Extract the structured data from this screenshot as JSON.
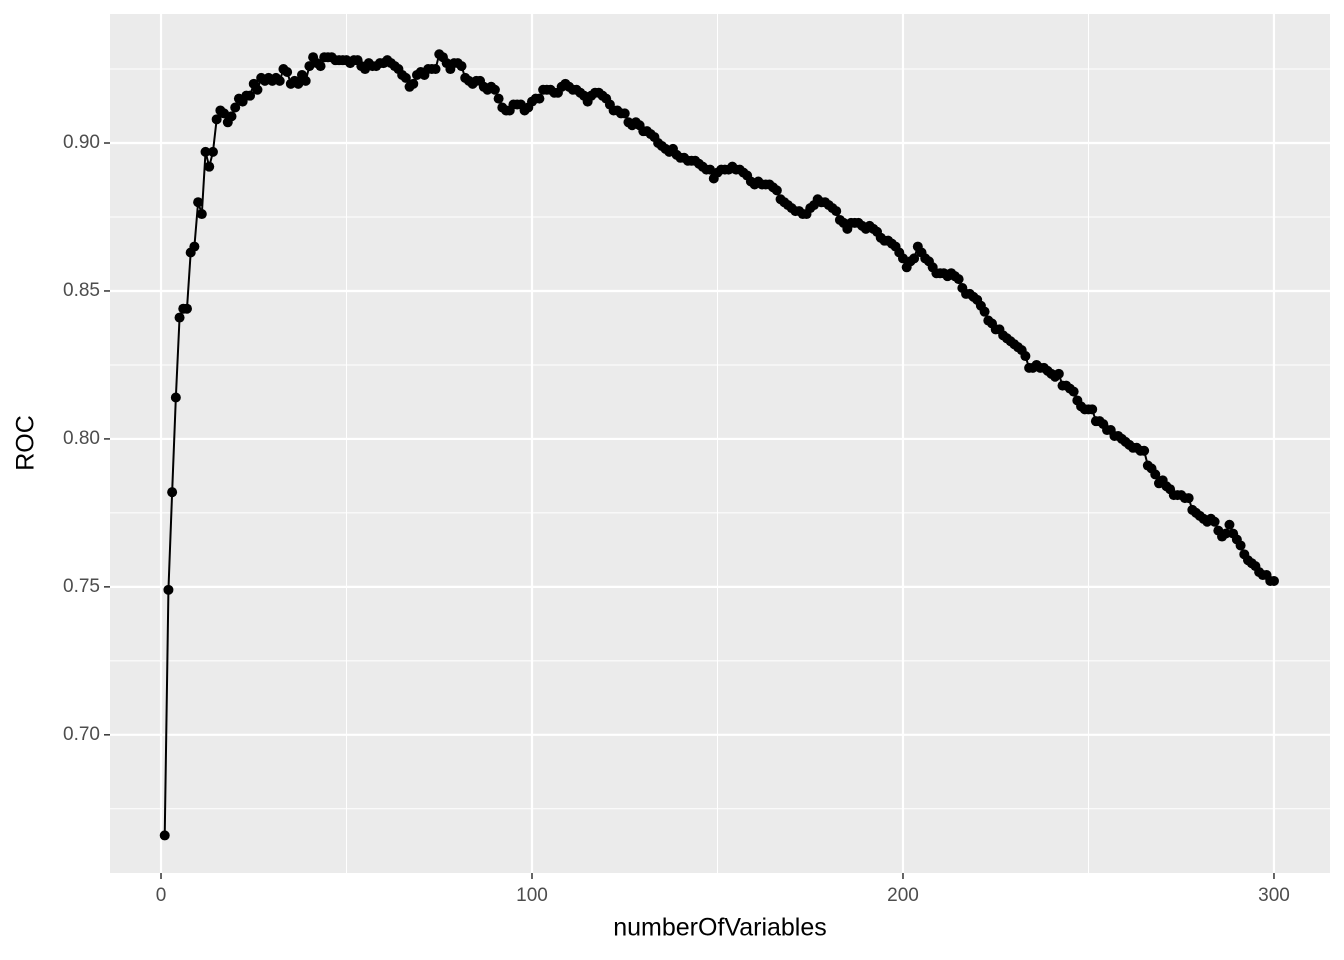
{
  "chart_data": {
    "type": "line",
    "x_label": "numberOfVariables",
    "y_label": "ROC",
    "x": [
      1,
      2,
      3,
      4,
      5,
      6,
      7,
      8,
      9,
      10,
      11,
      12,
      13,
      14,
      15,
      16,
      17,
      18,
      19,
      20,
      21,
      22,
      23,
      24,
      25,
      26,
      27,
      28,
      29,
      30,
      31,
      32,
      33,
      34,
      35,
      36,
      37,
      38,
      39,
      40,
      41,
      42,
      43,
      44,
      45,
      46,
      47,
      48,
      49,
      50,
      51,
      52,
      53,
      54,
      55,
      56,
      57,
      58,
      59,
      60,
      61,
      62,
      63,
      64,
      65,
      66,
      67,
      68,
      69,
      70,
      71,
      72,
      73,
      74,
      75,
      76,
      77,
      78,
      79,
      80,
      81,
      82,
      83,
      84,
      85,
      86,
      87,
      88,
      89,
      90,
      91,
      92,
      93,
      94,
      95,
      96,
      97,
      98,
      99,
      100,
      101,
      102,
      103,
      104,
      105,
      106,
      107,
      108,
      109,
      110,
      111,
      112,
      113,
      114,
      115,
      116,
      117,
      118,
      119,
      120,
      121,
      122,
      123,
      124,
      125,
      126,
      127,
      128,
      129,
      130,
      131,
      132,
      133,
      134,
      135,
      136,
      137,
      138,
      139,
      140,
      141,
      142,
      143,
      144,
      145,
      146,
      147,
      148,
      149,
      150,
      151,
      152,
      153,
      154,
      155,
      156,
      157,
      158,
      159,
      160,
      161,
      162,
      163,
      164,
      165,
      166,
      167,
      168,
      169,
      170,
      171,
      172,
      173,
      174,
      175,
      176,
      177,
      178,
      179,
      180,
      181,
      182,
      183,
      184,
      185,
      186,
      187,
      188,
      189,
      190,
      191,
      192,
      193,
      194,
      195,
      196,
      197,
      198,
      199,
      200,
      201,
      202,
      203,
      204,
      205,
      206,
      207,
      208,
      209,
      210,
      211,
      212,
      213,
      214,
      215,
      216,
      217,
      218,
      219,
      220,
      221,
      222,
      223,
      224,
      225,
      226,
      227,
      228,
      229,
      230,
      231,
      232,
      233,
      234,
      235,
      236,
      237,
      238,
      239,
      240,
      241,
      242,
      243,
      244,
      245,
      246,
      247,
      248,
      249,
      250,
      251,
      252,
      253,
      254,
      255,
      256,
      257,
      258,
      259,
      260,
      261,
      262,
      263,
      264,
      265,
      266,
      267,
      268,
      269,
      270,
      271,
      272,
      273,
      274,
      275,
      276,
      277,
      278,
      279,
      280,
      281,
      282,
      283,
      284,
      285,
      286,
      287,
      288,
      289,
      290,
      291,
      292,
      293,
      294,
      295,
      296,
      297,
      298,
      299,
      300
    ],
    "values": [
      0.666,
      0.749,
      0.782,
      0.814,
      0.841,
      0.844,
      0.844,
      0.863,
      0.865,
      0.88,
      0.876,
      0.897,
      0.892,
      0.897,
      0.908,
      0.911,
      0.91,
      0.907,
      0.909,
      0.912,
      0.915,
      0.914,
      0.916,
      0.916,
      0.92,
      0.918,
      0.922,
      0.921,
      0.922,
      0.921,
      0.922,
      0.921,
      0.925,
      0.924,
      0.92,
      0.921,
      0.92,
      0.923,
      0.921,
      0.926,
      0.929,
      0.927,
      0.926,
      0.929,
      0.929,
      0.929,
      0.928,
      0.928,
      0.928,
      0.928,
      0.927,
      0.928,
      0.928,
      0.926,
      0.925,
      0.927,
      0.926,
      0.926,
      0.927,
      0.927,
      0.928,
      0.927,
      0.926,
      0.925,
      0.923,
      0.922,
      0.919,
      0.92,
      0.923,
      0.924,
      0.923,
      0.925,
      0.925,
      0.925,
      0.93,
      0.929,
      0.927,
      0.925,
      0.927,
      0.927,
      0.926,
      0.922,
      0.921,
      0.92,
      0.921,
      0.921,
      0.919,
      0.918,
      0.919,
      0.918,
      0.915,
      0.912,
      0.911,
      0.911,
      0.913,
      0.913,
      0.913,
      0.911,
      0.912,
      0.914,
      0.915,
      0.915,
      0.918,
      0.918,
      0.918,
      0.917,
      0.917,
      0.919,
      0.92,
      0.919,
      0.918,
      0.918,
      0.917,
      0.916,
      0.914,
      0.916,
      0.917,
      0.917,
      0.916,
      0.915,
      0.913,
      0.911,
      0.911,
      0.91,
      0.91,
      0.907,
      0.906,
      0.907,
      0.906,
      0.904,
      0.904,
      0.903,
      0.902,
      0.9,
      0.899,
      0.898,
      0.897,
      0.898,
      0.896,
      0.895,
      0.895,
      0.894,
      0.894,
      0.894,
      0.893,
      0.892,
      0.891,
      0.891,
      0.888,
      0.89,
      0.891,
      0.891,
      0.891,
      0.892,
      0.891,
      0.891,
      0.89,
      0.889,
      0.887,
      0.886,
      0.887,
      0.886,
      0.886,
      0.886,
      0.885,
      0.884,
      0.881,
      0.88,
      0.879,
      0.878,
      0.877,
      0.877,
      0.876,
      0.876,
      0.878,
      0.879,
      0.881,
      0.88,
      0.88,
      0.879,
      0.878,
      0.877,
      0.874,
      0.873,
      0.871,
      0.873,
      0.873,
      0.873,
      0.872,
      0.871,
      0.872,
      0.871,
      0.87,
      0.868,
      0.867,
      0.867,
      0.866,
      0.865,
      0.863,
      0.861,
      0.858,
      0.86,
      0.861,
      0.865,
      0.863,
      0.861,
      0.86,
      0.858,
      0.856,
      0.856,
      0.856,
      0.855,
      0.856,
      0.855,
      0.854,
      0.851,
      0.849,
      0.849,
      0.848,
      0.847,
      0.845,
      0.843,
      0.84,
      0.839,
      0.837,
      0.837,
      0.835,
      0.834,
      0.833,
      0.832,
      0.831,
      0.83,
      0.828,
      0.824,
      0.824,
      0.825,
      0.824,
      0.824,
      0.823,
      0.822,
      0.821,
      0.822,
      0.818,
      0.818,
      0.817,
      0.816,
      0.813,
      0.811,
      0.81,
      0.81,
      0.81,
      0.806,
      0.806,
      0.805,
      0.803,
      0.803,
      0.801,
      0.801,
      0.8,
      0.799,
      0.798,
      0.797,
      0.797,
      0.796,
      0.796,
      0.791,
      0.79,
      0.788,
      0.785,
      0.786,
      0.784,
      0.783,
      0.781,
      0.781,
      0.781,
      0.78,
      0.78,
      0.776,
      0.775,
      0.774,
      0.773,
      0.772,
      0.773,
      0.772,
      0.769,
      0.767,
      0.768,
      0.771,
      0.768,
      0.766,
      0.764,
      0.761,
      0.759,
      0.758,
      0.757,
      0.755,
      0.754,
      0.754,
      0.752,
      0.752
    ],
    "color": "#000000",
    "markers": true,
    "grid": true,
    "background": "#ebebeb",
    "xlim": [
      -13.75,
      315.1
    ],
    "ylim": [
      0.6533,
      0.9436
    ],
    "xticks": [
      0,
      100,
      200,
      300
    ],
    "yticks": [
      {
        "value": 0.7,
        "label": "0.70"
      },
      {
        "value": 0.75,
        "label": "0.75"
      },
      {
        "value": 0.8,
        "label": "0.80"
      },
      {
        "value": 0.85,
        "label": "0.85"
      },
      {
        "value": 0.9,
        "label": "0.90"
      }
    ]
  }
}
